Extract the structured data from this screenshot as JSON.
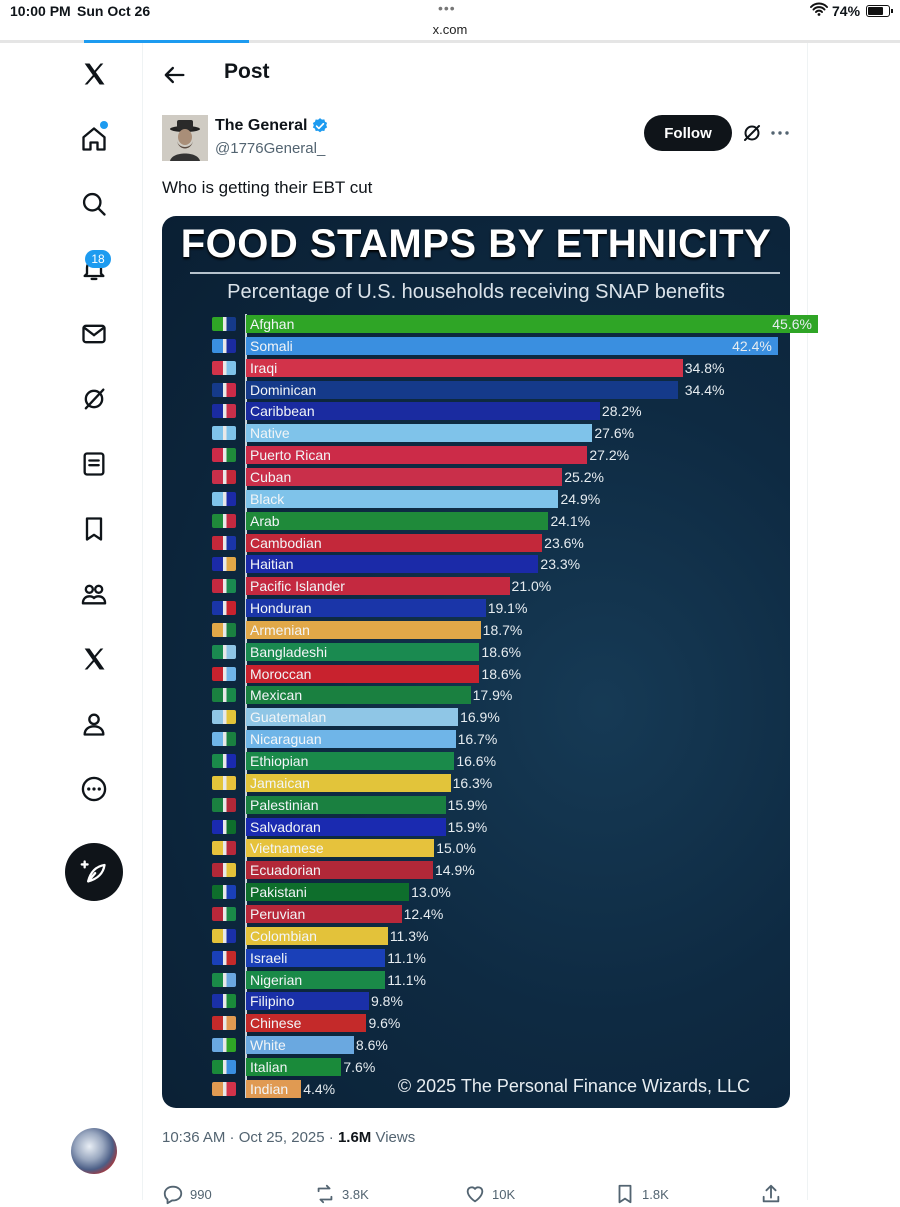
{
  "status_bar": {
    "time": "10:00 PM",
    "date": "Sun Oct 26",
    "url": "x.com",
    "battery": "74%",
    "battery_level": 0.74
  },
  "sidebar": {
    "items": [
      {
        "name": "x-logo-icon"
      },
      {
        "name": "home-icon"
      },
      {
        "name": "search-icon"
      },
      {
        "name": "notifications-icon"
      },
      {
        "name": "messages-icon"
      },
      {
        "name": "grok-icon"
      },
      {
        "name": "lists-icon"
      },
      {
        "name": "bookmarks-icon"
      },
      {
        "name": "communities-icon"
      },
      {
        "name": "premium-icon"
      },
      {
        "name": "profile-icon"
      },
      {
        "name": "more-icon"
      }
    ],
    "notification_count": "18"
  },
  "header": {
    "title": "Post"
  },
  "post": {
    "author_name": "The General",
    "author_handle": "@1776General_",
    "follow_label": "Follow",
    "text": "Who is getting their EBT cut",
    "timestamp": "10:36 AM · Oct 25, 2025",
    "separator": " · ",
    "views_count": "1.6M",
    "views_label": "Views",
    "replies": "990",
    "reposts": "3.8K",
    "likes": "10K",
    "bookmarks": "1.8K"
  },
  "chart_data": {
    "type": "bar",
    "orientation": "horizontal",
    "title": "FOOD STAMPS BY ETHNICITY",
    "subtitle": "Percentage of U.S. households receiving SNAP benefits",
    "copyright": "© 2025 The Personal Finance Wizards, LLC",
    "categories": [
      "Afghan",
      "Somali",
      "Iraqi",
      "Dominican",
      "Caribbean",
      "Native",
      "Puerto Rican",
      "Cuban",
      "Black",
      "Arab",
      "Cambodian",
      "Haitian",
      "Pacific Islander",
      "Honduran",
      "Armenian",
      "Bangladeshi",
      "Moroccan",
      "Mexican",
      "Guatemalan",
      "Nicaraguan",
      "Ethiopian",
      "Jamaican",
      "Palestinian",
      "Salvadoran",
      "Vietnamese",
      "Ecuadorian",
      "Pakistani",
      "Peruvian",
      "Colombian",
      "Israeli",
      "Nigerian",
      "Filipino",
      "Chinese",
      "White",
      "Italian",
      "Indian"
    ],
    "values": [
      45.6,
      42.4,
      34.8,
      34.4,
      28.2,
      27.6,
      27.2,
      25.2,
      24.9,
      24.1,
      23.6,
      23.3,
      21.0,
      19.1,
      18.7,
      18.6,
      18.6,
      17.9,
      16.9,
      16.7,
      16.6,
      16.3,
      15.9,
      15.9,
      15.0,
      14.9,
      13.0,
      12.4,
      11.3,
      11.1,
      11.1,
      9.8,
      9.6,
      8.6,
      7.6,
      4.4
    ],
    "value_labels": [
      "45.6%",
      "42.4%",
      "34.8%",
      "34.4%",
      "28.2%",
      "27.6%",
      "27.2%",
      "25.2%",
      "24.9%",
      "24.1%",
      "23.6%",
      "23.3%",
      "21.0%",
      "19.1%",
      "18.7%",
      "18.6%",
      "18.6%",
      "17.9%",
      "16.9%",
      "16.7%",
      "16.6%",
      "16.3%",
      "15.9%",
      "15.9%",
      "15.0%",
      "14.9%",
      "13.0%",
      "12.4%",
      "11.3%",
      "11.1%",
      "11.1%",
      "9.8%",
      "9.6%",
      "8.6%",
      "7.6%",
      "4.4%"
    ],
    "colors": [
      "#2fa526",
      "#3a8fe0",
      "#d2334a",
      "#153a8a",
      "#1a2ba0",
      "#7fc3ea",
      "#cc2b48",
      "#c92f4a",
      "#7fc3ea",
      "#1f8a3a",
      "#c3283a",
      "#1b2aa8",
      "#c42940",
      "#1a35a8",
      "#e1a848",
      "#1a8a50",
      "#c8222e",
      "#1a8040",
      "#8fc6e6",
      "#6fb5e8",
      "#1a8a4a",
      "#e2c43a",
      "#1a8040",
      "#1a2ab0",
      "#e6c23c",
      "#b22838",
      "#0e6e2c",
      "#b8283a",
      "#e3c23a",
      "#1a40b8",
      "#1a8a48",
      "#1a30a8",
      "#c42a2a",
      "#6aa8e0",
      "#1a8a3a",
      "#e09a52"
    ],
    "xlim": [
      0,
      50
    ]
  }
}
